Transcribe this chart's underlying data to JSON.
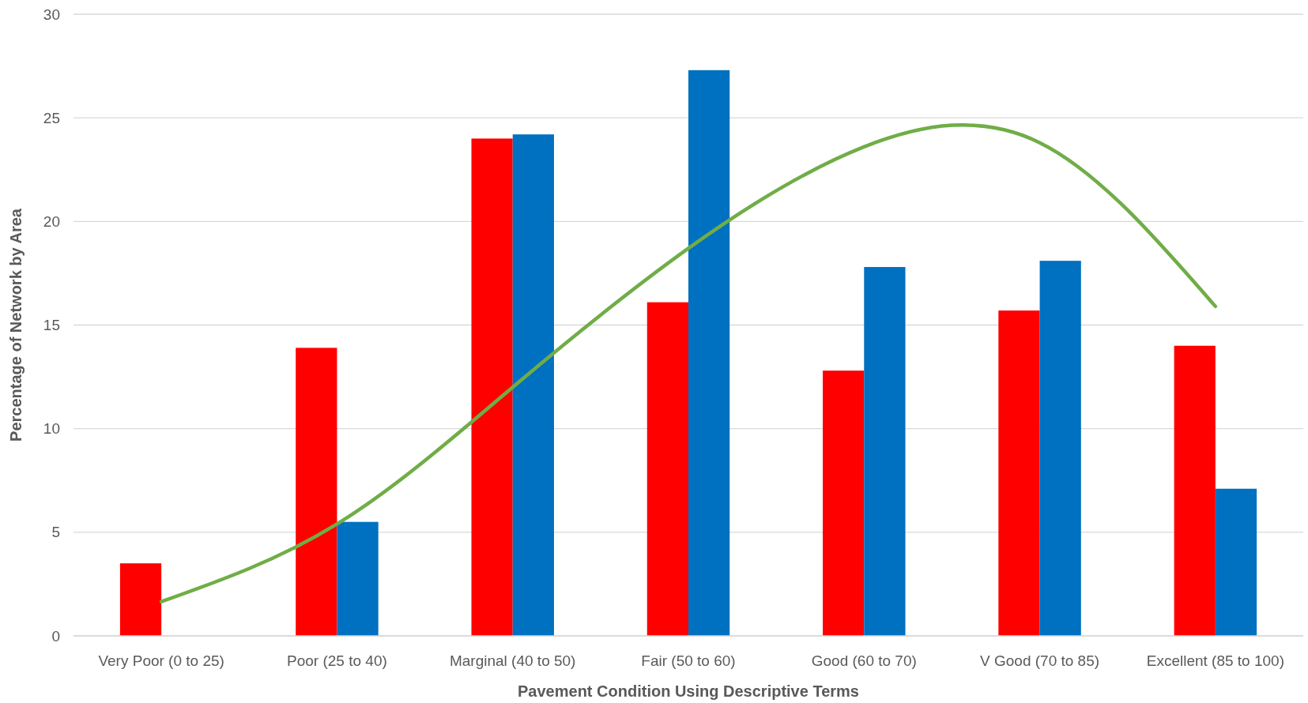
{
  "chart_data": {
    "type": "bar",
    "xlabel": "Pavement Condition Using Descriptive Terms",
    "ylabel": "Percentage of Network by Area",
    "categories": [
      "Very Poor (0 to 25)",
      "Poor (25 to 40)",
      "Marginal (40 to 50)",
      "Fair (50 to 60)",
      "Good (60 to 70)",
      "V Good (70 to 85)",
      "Excellent (85 to 100)"
    ],
    "series": [
      {
        "color": "#ff0000",
        "values": [
          3.5,
          13.9,
          24.0,
          16.1,
          12.8,
          15.7,
          14.0
        ]
      },
      {
        "color": "#0070c0",
        "values": [
          null,
          5.5,
          24.2,
          27.3,
          17.8,
          18.1,
          7.1
        ]
      },
      {
        "type": "line",
        "color": "#70ad47",
        "values": [
          1.65,
          5.4,
          12.0,
          18.7,
          23.6,
          23.8,
          15.9
        ]
      }
    ],
    "ylim": [
      0,
      30
    ],
    "yticks": [
      0,
      5,
      10,
      15,
      20,
      25,
      30
    ],
    "grid": "y",
    "marker": "none"
  }
}
